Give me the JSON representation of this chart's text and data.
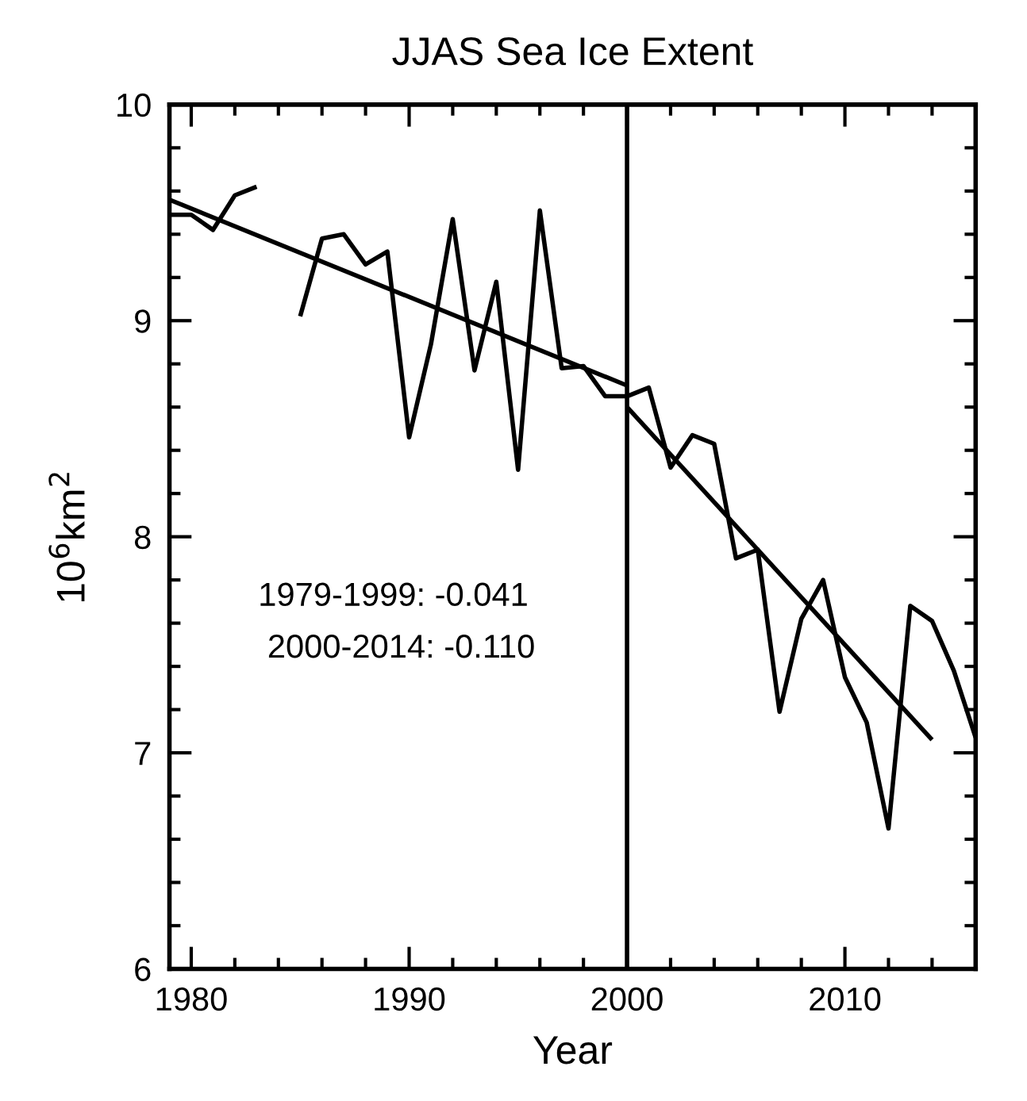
{
  "chart_data": {
    "type": "line",
    "title": "JJAS Sea Ice Extent",
    "xlabel": "Year",
    "ylabel": "10$^{6}$km$^{2}$",
    "x": [
      1979,
      1980,
      1981,
      1982,
      1983,
      1984,
      1985,
      1986,
      1987,
      1988,
      1989,
      1990,
      1991,
      1992,
      1993,
      1994,
      1995,
      1996,
      1997,
      1998,
      1999,
      2000,
      2001,
      2002,
      2003,
      2004,
      2005,
      2006,
      2007,
      2008,
      2009,
      2010,
      2011,
      2012,
      2013,
      2014,
      2015,
      2016
    ],
    "series": [
      {
        "color": "#000000",
        "values": [
          9.49,
          9.49,
          9.42,
          9.58,
          9.62,
          null,
          9.02,
          9.38,
          9.4,
          9.26,
          9.32,
          8.46,
          8.89,
          9.47,
          8.77,
          9.18,
          8.31,
          9.51,
          8.78,
          8.79,
          8.65,
          8.65,
          8.69,
          8.32,
          8.47,
          8.43,
          7.9,
          7.94,
          7.19,
          7.62,
          7.8,
          7.35,
          7.14,
          6.65,
          7.68,
          7.61,
          7.38,
          7.07
        ]
      },
      {
        "color": "#000000",
        "x": [
          1979,
          2000
        ],
        "values": [
          9.56,
          8.7
        ]
      },
      {
        "color": "#000000",
        "x": [
          2000,
          2014
        ],
        "values": [
          8.6,
          7.06
        ]
      }
    ],
    "xlim": [
      1979,
      2016
    ],
    "ylim": [
      6,
      10
    ],
    "xticks": [
      1980,
      1990,
      2000,
      2010
    ],
    "yticks": [
      6,
      7,
      8,
      9,
      10
    ],
    "ref_lines": [
      {
        "axis": "x",
        "value": 2000,
        "color": "#000000"
      }
    ],
    "annotations": [
      "1979-1999: -0.041",
      " 2000-2014: -0.110"
    ],
    "grid": false,
    "legend": false,
    "marker": "none",
    "line_style": "solid"
  }
}
